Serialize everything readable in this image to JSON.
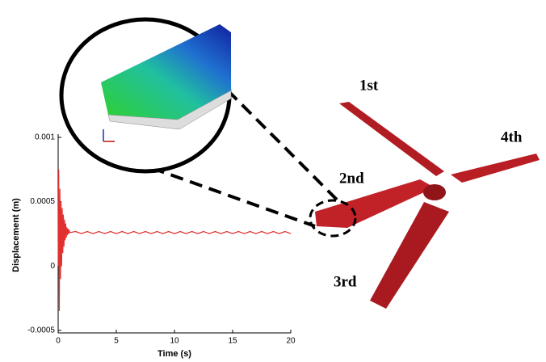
{
  "chart_data": {
    "type": "line",
    "x_label": "Time (s)",
    "y_label": "Displacement (m)",
    "xlim": [
      0,
      20
    ],
    "xticks": [
      0,
      5,
      10,
      15,
      20
    ],
    "ylim": [
      -0.00052,
      0.001
    ],
    "yticks": [
      -0.0005,
      0,
      0.0005,
      0.001
    ],
    "series": [
      {
        "color": "#e03030",
        "x": [
          0,
          0.05,
          0.1,
          0.15,
          0.2,
          0.25,
          0.3,
          0.35,
          0.4,
          0.45,
          0.5,
          0.55,
          0.6,
          0.65,
          0.7,
          0.75,
          0.8,
          0.85,
          0.9,
          0.95,
          1.0,
          1.5,
          2,
          2.5,
          3,
          3.5,
          4,
          4.5,
          5,
          5.5,
          6,
          6.5,
          7,
          7.5,
          8,
          8.5,
          9,
          9.5,
          10,
          10.5,
          11,
          11.5,
          12,
          12.5,
          13,
          13.5,
          14,
          14.5,
          15,
          15.5,
          16,
          16.5,
          17,
          17.5,
          18,
          18.5,
          19,
          19.5,
          20
        ],
        "values": [
          0,
          0.00075,
          -0.00035,
          0.0006,
          -0.0001,
          0.0005,
          0.0,
          0.00045,
          0.0001,
          0.0004,
          0.00015,
          0.00036,
          0.0002,
          0.00033,
          0.00022,
          0.0003,
          0.00024,
          0.00029,
          0.00025,
          0.00028,
          0.00026,
          0.000268,
          0.000252,
          0.000268,
          0.000252,
          0.000268,
          0.000252,
          0.000268,
          0.000252,
          0.000268,
          0.000252,
          0.000268,
          0.000252,
          0.000268,
          0.000252,
          0.000268,
          0.000252,
          0.000268,
          0.000252,
          0.000268,
          0.000252,
          0.000268,
          0.000252,
          0.000268,
          0.000252,
          0.000268,
          0.000252,
          0.000268,
          0.000252,
          0.000268,
          0.000252,
          0.000268,
          0.000252,
          0.000268,
          0.000252,
          0.000268,
          0.000252,
          0.000268,
          0.000252
        ]
      }
    ]
  },
  "blade_labels": [
    "1st",
    "2nd",
    "3rd",
    "4th"
  ]
}
